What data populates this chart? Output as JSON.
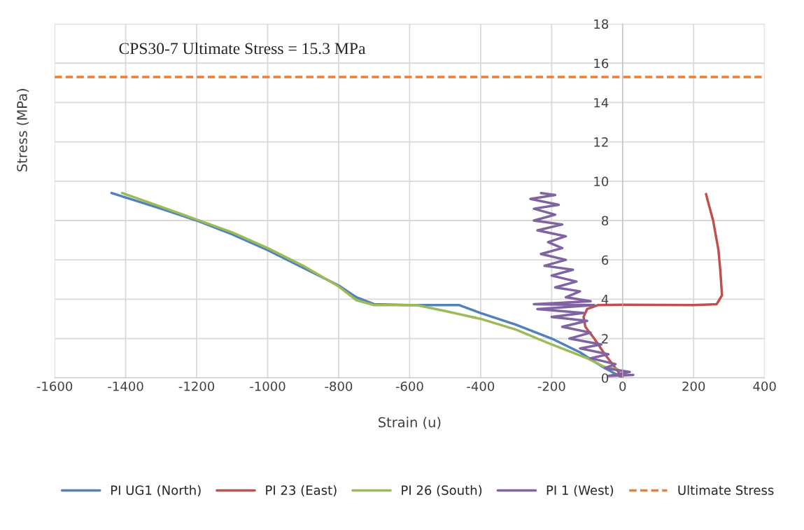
{
  "chart_data": {
    "type": "line",
    "xlabel": "Strain (u)",
    "ylabel": "Stress (MPa)",
    "annotations": [
      "CPS30-7 Ultimate Stress = 15.3 MPa"
    ],
    "xlim": [
      -1600,
      400
    ],
    "xticks": [
      -1600,
      -1400,
      -1200,
      -1000,
      -800,
      -600,
      -400,
      -200,
      0,
      200,
      400
    ],
    "ylim": [
      0,
      18
    ],
    "yticks": [
      0,
      2,
      4,
      6,
      8,
      10,
      12,
      14,
      16,
      18
    ],
    "grid": true,
    "legend": "bottom",
    "marker": "none",
    "series": [
      {
        "name": "PI UG1 (North)",
        "color": "#4f81bd",
        "x": [
          -1440,
          -1300,
          -1200,
          -1100,
          -1000,
          -900,
          -800,
          -750,
          -700,
          -600,
          -460,
          -400,
          -300,
          -200,
          -120,
          -60,
          -30,
          0
        ],
        "values": [
          9.4,
          8.6,
          8.0,
          7.3,
          6.5,
          5.6,
          4.7,
          4.1,
          3.75,
          3.7,
          3.7,
          3.3,
          2.7,
          2.0,
          1.3,
          0.6,
          0.3,
          0
        ]
      },
      {
        "name": "PI 23 (East)",
        "color": "#c0504d",
        "x": [
          0,
          -20,
          -50,
          -80,
          -105,
          -110,
          -100,
          -70,
          0,
          200,
          265,
          280,
          275,
          270,
          255,
          240,
          235
        ],
        "values": [
          0,
          0.5,
          1.2,
          2.0,
          2.6,
          3.1,
          3.5,
          3.7,
          3.72,
          3.7,
          3.75,
          4.2,
          5.5,
          6.5,
          8.0,
          9.0,
          9.35
        ]
      },
      {
        "name": "PI 26 (South)",
        "color": "#9bbb59",
        "x": [
          -1410,
          -1300,
          -1200,
          -1100,
          -1000,
          -900,
          -800,
          -750,
          -700,
          -580,
          -500,
          -400,
          -300,
          -200,
          -100,
          -50,
          -15
        ],
        "values": [
          9.4,
          8.7,
          8.05,
          7.4,
          6.6,
          5.7,
          4.65,
          3.95,
          3.7,
          3.7,
          3.4,
          3.0,
          2.45,
          1.7,
          1.0,
          0.55,
          0.45
        ]
      },
      {
        "name": "PI 1 (West)",
        "color": "#8064a2",
        "x": [
          30,
          -40,
          20,
          -50,
          -20,
          -90,
          -40,
          -120,
          -60,
          -150,
          -90,
          -170,
          -100,
          -200,
          -110,
          -240,
          -80,
          -250,
          -90,
          -160,
          -120,
          -190,
          -130,
          -200,
          -140,
          -220,
          -160,
          -230,
          -170,
          -210,
          -160,
          -240,
          -170,
          -250,
          -190,
          -250,
          -180,
          -260,
          -190,
          -230
        ],
        "values": [
          0.15,
          0.1,
          0.3,
          0.5,
          0.7,
          1.0,
          1.2,
          1.5,
          1.7,
          2.0,
          2.3,
          2.6,
          2.9,
          3.1,
          3.3,
          3.5,
          3.7,
          3.75,
          3.9,
          4.1,
          4.4,
          4.6,
          4.9,
          5.2,
          5.5,
          5.7,
          6.0,
          6.3,
          6.6,
          6.9,
          7.2,
          7.5,
          7.8,
          8.0,
          8.3,
          8.6,
          8.8,
          9.1,
          9.3,
          9.4
        ]
      },
      {
        "name": "Ultimate Stress",
        "color": "#ed7d31",
        "line_style": "dashed",
        "x": [
          -1600,
          400
        ],
        "values": [
          15.3,
          15.3
        ]
      }
    ]
  }
}
